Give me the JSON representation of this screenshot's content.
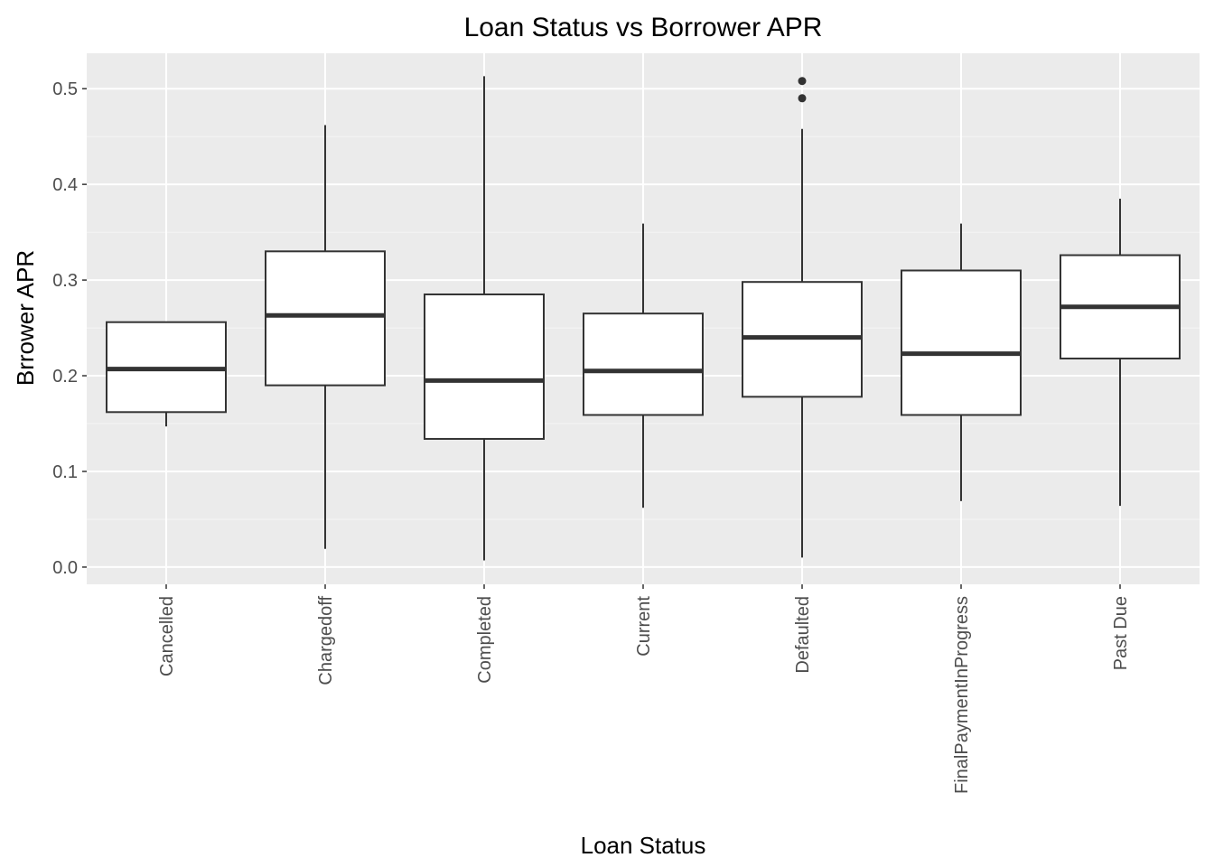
{
  "chart_data": {
    "type": "boxplot",
    "title": "Loan Status vs Borrower APR",
    "xlabel": "Loan Status",
    "ylabel": "Brrower APR",
    "ylim": [
      -0.018,
      0.537
    ],
    "yticks": [
      0.0,
      0.1,
      0.2,
      0.3,
      0.4,
      0.5
    ],
    "ytick_labels": [
      "0.0",
      "0.1",
      "0.2",
      "0.3",
      "0.4",
      "0.5"
    ],
    "grid": true,
    "categories": [
      "Cancelled",
      "Chargedoff",
      "Completed",
      "Current",
      "Defaulted",
      "FinalPaymentInProgress",
      "Past Due"
    ],
    "boxes": [
      {
        "category": "Cancelled",
        "min": 0.147,
        "q1": 0.162,
        "median": 0.207,
        "q3": 0.256,
        "max": 0.256,
        "outliers": []
      },
      {
        "category": "Chargedoff",
        "min": 0.019,
        "q1": 0.19,
        "median": 0.263,
        "q3": 0.33,
        "max": 0.462,
        "outliers": []
      },
      {
        "category": "Completed",
        "min": 0.007,
        "q1": 0.134,
        "median": 0.195,
        "q3": 0.285,
        "max": 0.513,
        "outliers": []
      },
      {
        "category": "Current",
        "min": 0.062,
        "q1": 0.159,
        "median": 0.205,
        "q3": 0.265,
        "max": 0.359,
        "outliers": []
      },
      {
        "category": "Defaulted",
        "min": 0.01,
        "q1": 0.178,
        "median": 0.24,
        "q3": 0.298,
        "max": 0.458,
        "outliers": [
          0.49,
          0.508
        ]
      },
      {
        "category": "FinalPaymentInProgress",
        "min": 0.069,
        "q1": 0.159,
        "median": 0.223,
        "q3": 0.31,
        "max": 0.359,
        "outliers": []
      },
      {
        "category": "Past Due",
        "min": 0.064,
        "q1": 0.218,
        "median": 0.272,
        "q3": 0.326,
        "max": 0.385,
        "outliers": []
      }
    ],
    "colors": {
      "panel": "#ebebeb",
      "grid_major": "#ffffff",
      "grid_minor": "#f5f5f5",
      "box_fill": "#ffffff",
      "box_line": "#333333"
    }
  }
}
